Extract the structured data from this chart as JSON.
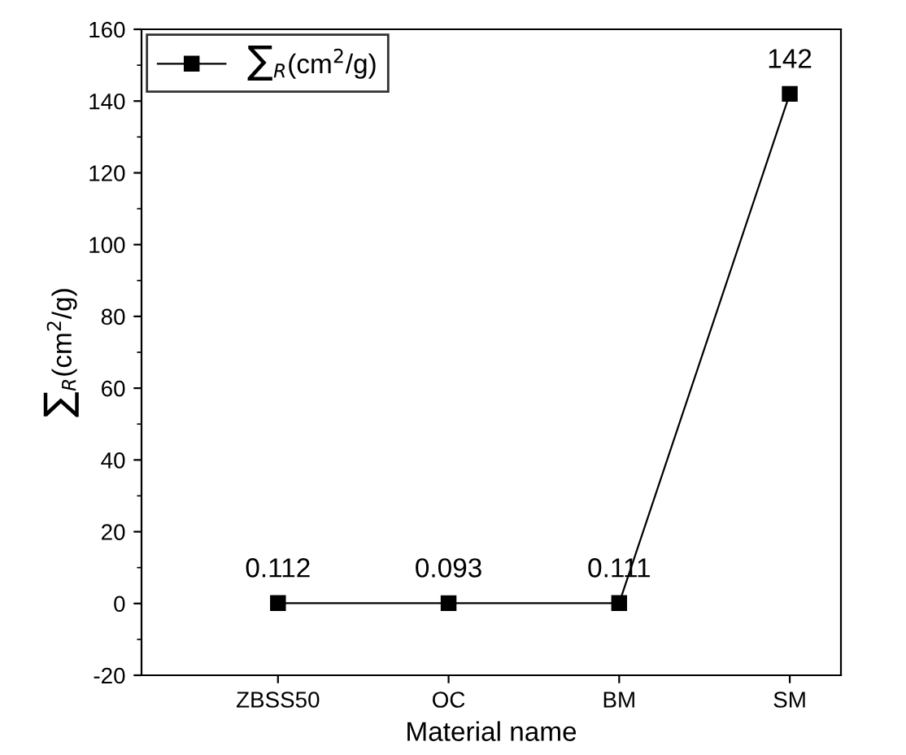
{
  "chart_data": {
    "type": "line",
    "xlabel": "Material name",
    "ylabel": "∑$_{R}$(cm$^{2}$/g)",
    "categories": [
      "ZBSS50",
      "OC",
      "BM",
      "SM"
    ],
    "series": [
      {
        "name": "∑$_{R}$(cm$^{2}$/g)",
        "color": "#000000",
        "values": [
          0.112,
          0.093,
          0.111,
          142
        ]
      }
    ],
    "ylim": [
      -20,
      160
    ],
    "yticks": [
      -20,
      0,
      20,
      40,
      60,
      80,
      100,
      120,
      140,
      160
    ],
    "data_labels": true,
    "legend": "top left",
    "marker": "square",
    "line_style": "solid",
    "grid": false
  }
}
